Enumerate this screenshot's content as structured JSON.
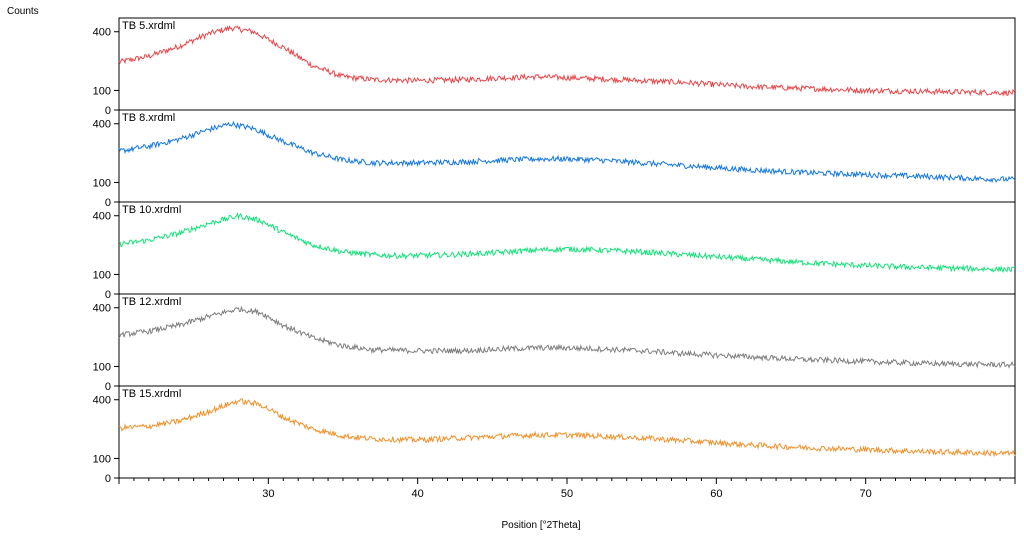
{
  "chart_data": {
    "type": "line",
    "ylabel": "Counts",
    "xlabel": "Position [°2Theta]",
    "x_range": [
      20,
      80
    ],
    "x_ticks": [
      30,
      40,
      50,
      60,
      70
    ],
    "y_ticks": [
      0,
      100,
      400
    ],
    "series": [
      {
        "name": "TB 5.xrdml",
        "color": "#e8474a",
        "points": [
          [
            20,
            245
          ],
          [
            22,
            275
          ],
          [
            24,
            325
          ],
          [
            26,
            390
          ],
          [
            27.5,
            420
          ],
          [
            29,
            400
          ],
          [
            31,
            320
          ],
          [
            33,
            225
          ],
          [
            35,
            170
          ],
          [
            37,
            155
          ],
          [
            40,
            150
          ],
          [
            43,
            155
          ],
          [
            46,
            165
          ],
          [
            48,
            170
          ],
          [
            50,
            165
          ],
          [
            52,
            160
          ],
          [
            55,
            150
          ],
          [
            58,
            140
          ],
          [
            62,
            120
          ],
          [
            66,
            110
          ],
          [
            70,
            100
          ],
          [
            74,
            95
          ],
          [
            78,
            90
          ],
          [
            80,
            88
          ]
        ]
      },
      {
        "name": "TB 8.xrdml",
        "color": "#1778e0",
        "points": [
          [
            20,
            260
          ],
          [
            22,
            285
          ],
          [
            24,
            320
          ],
          [
            26,
            370
          ],
          [
            27.5,
            400
          ],
          [
            29,
            375
          ],
          [
            31,
            310
          ],
          [
            33,
            250
          ],
          [
            35,
            215
          ],
          [
            37,
            200
          ],
          [
            40,
            200
          ],
          [
            43,
            205
          ],
          [
            46,
            215
          ],
          [
            48,
            220
          ],
          [
            50,
            220
          ],
          [
            52,
            215
          ],
          [
            55,
            200
          ],
          [
            58,
            185
          ],
          [
            62,
            165
          ],
          [
            66,
            150
          ],
          [
            70,
            140
          ],
          [
            74,
            130
          ],
          [
            78,
            118
          ],
          [
            80,
            115
          ]
        ]
      },
      {
        "name": "TB 10.xrdml",
        "color": "#16e27a",
        "points": [
          [
            20,
            255
          ],
          [
            22,
            275
          ],
          [
            24,
            310
          ],
          [
            26,
            360
          ],
          [
            28,
            400
          ],
          [
            29.5,
            375
          ],
          [
            31,
            315
          ],
          [
            33,
            250
          ],
          [
            35,
            215
          ],
          [
            37,
            200
          ],
          [
            39,
            195
          ],
          [
            42,
            200
          ],
          [
            45,
            210
          ],
          [
            48,
            225
          ],
          [
            50,
            230
          ],
          [
            52,
            225
          ],
          [
            55,
            215
          ],
          [
            58,
            200
          ],
          [
            62,
            180
          ],
          [
            66,
            160
          ],
          [
            70,
            145
          ],
          [
            74,
            135
          ],
          [
            78,
            128
          ],
          [
            80,
            125
          ]
        ]
      },
      {
        "name": "TB 12.xrdml",
        "color": "#808080",
        "points": [
          [
            20,
            260
          ],
          [
            22,
            280
          ],
          [
            24,
            310
          ],
          [
            26,
            355
          ],
          [
            28,
            395
          ],
          [
            29.5,
            375
          ],
          [
            31,
            310
          ],
          [
            33,
            245
          ],
          [
            35,
            205
          ],
          [
            37,
            185
          ],
          [
            40,
            180
          ],
          [
            43,
            180
          ],
          [
            46,
            190
          ],
          [
            48,
            195
          ],
          [
            50,
            195
          ],
          [
            52,
            190
          ],
          [
            55,
            180
          ],
          [
            58,
            165
          ],
          [
            62,
            150
          ],
          [
            66,
            135
          ],
          [
            70,
            125
          ],
          [
            74,
            115
          ],
          [
            78,
            110
          ],
          [
            80,
            108
          ]
        ]
      },
      {
        "name": "TB 15.xrdml",
        "color": "#f0922e",
        "points": [
          [
            20,
            255
          ],
          [
            22,
            265
          ],
          [
            24,
            290
          ],
          [
            26,
            340
          ],
          [
            28,
            395
          ],
          [
            29.5,
            375
          ],
          [
            31,
            310
          ],
          [
            33,
            250
          ],
          [
            35,
            215
          ],
          [
            37,
            200
          ],
          [
            40,
            195
          ],
          [
            43,
            205
          ],
          [
            46,
            215
          ],
          [
            48,
            220
          ],
          [
            50,
            220
          ],
          [
            52,
            215
          ],
          [
            55,
            205
          ],
          [
            58,
            190
          ],
          [
            62,
            170
          ],
          [
            66,
            155
          ],
          [
            70,
            145
          ],
          [
            74,
            135
          ],
          [
            78,
            128
          ],
          [
            80,
            125
          ]
        ]
      }
    ]
  }
}
